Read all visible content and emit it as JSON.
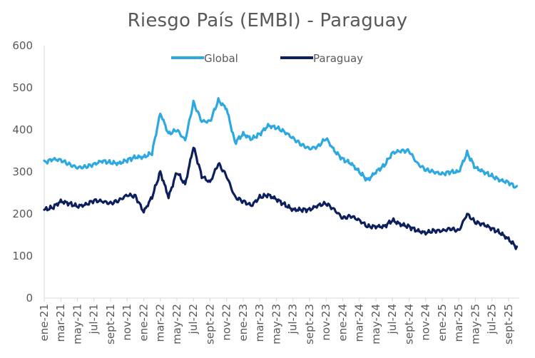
{
  "chart_data": {
    "type": "line",
    "title": "Riesgo País (EMBI) - Paraguay",
    "xlabel": "",
    "ylabel": "",
    "ylim": [
      0,
      600
    ],
    "yticks": [
      0,
      100,
      200,
      300,
      400,
      500,
      600
    ],
    "grid": false,
    "legend_position": "top",
    "categories": [
      "ene-21",
      "mar-21",
      "may-21",
      "jul-21",
      "sept-21",
      "nov-21",
      "ene-22",
      "mar-22",
      "may-22",
      "jul-22",
      "sept-22",
      "nov-22",
      "ene-23",
      "mar-23",
      "may-23",
      "jul-23",
      "sept-23",
      "nov-23",
      "ene-24",
      "mar-24",
      "may-24",
      "jul-24",
      "sept-24",
      "nov-24",
      "ene-25",
      "mar-25",
      "may-25",
      "jul-25",
      "sept-25"
    ],
    "x": [
      "2021-01",
      "2021-02",
      "2021-03",
      "2021-04",
      "2021-05",
      "2021-06",
      "2021-07",
      "2021-08",
      "2021-09",
      "2021-10",
      "2021-11",
      "2021-12",
      "2022-01",
      "2022-02",
      "2022-03",
      "2022-04",
      "2022-05",
      "2022-06",
      "2022-07",
      "2022-08",
      "2022-09",
      "2022-10",
      "2022-11",
      "2022-12",
      "2023-01",
      "2023-02",
      "2023-03",
      "2023-04",
      "2023-05",
      "2023-06",
      "2023-07",
      "2023-08",
      "2023-09",
      "2023-10",
      "2023-11",
      "2023-12",
      "2024-01",
      "2024-02",
      "2024-03",
      "2024-04",
      "2024-05",
      "2024-06",
      "2024-07",
      "2024-08",
      "2024-09",
      "2024-10",
      "2024-11",
      "2024-12",
      "2025-01",
      "2025-02",
      "2025-03",
      "2025-04",
      "2025-05",
      "2025-06",
      "2025-07",
      "2025-08",
      "2025-09",
      "2025-10"
    ],
    "series": [
      {
        "name": "Global",
        "color": "#2EA8E0",
        "values": [
          322,
          330,
          328,
          318,
          310,
          312,
          318,
          326,
          322,
          320,
          328,
          335,
          335,
          345,
          440,
          390,
          400,
          375,
          465,
          420,
          420,
          470,
          450,
          370,
          390,
          378,
          390,
          410,
          405,
          395,
          380,
          365,
          355,
          360,
          380,
          350,
          330,
          320,
          300,
          280,
          300,
          315,
          345,
          350,
          350,
          320,
          305,
          300,
          295,
          300,
          300,
          345,
          310,
          300,
          290,
          280,
          275,
          262
        ]
      },
      {
        "name": "Paraguay",
        "color": "#0D1F5C",
        "values": [
          210,
          215,
          230,
          225,
          218,
          222,
          232,
          230,
          225,
          232,
          245,
          242,
          205,
          240,
          300,
          240,
          300,
          270,
          360,
          290,
          275,
          320,
          290,
          240,
          230,
          220,
          240,
          245,
          235,
          222,
          210,
          210,
          210,
          220,
          225,
          210,
          190,
          195,
          185,
          170,
          170,
          170,
          185,
          175,
          170,
          160,
          155,
          160,
          160,
          165,
          160,
          200,
          180,
          175,
          165,
          155,
          140,
          120
        ]
      }
    ]
  }
}
